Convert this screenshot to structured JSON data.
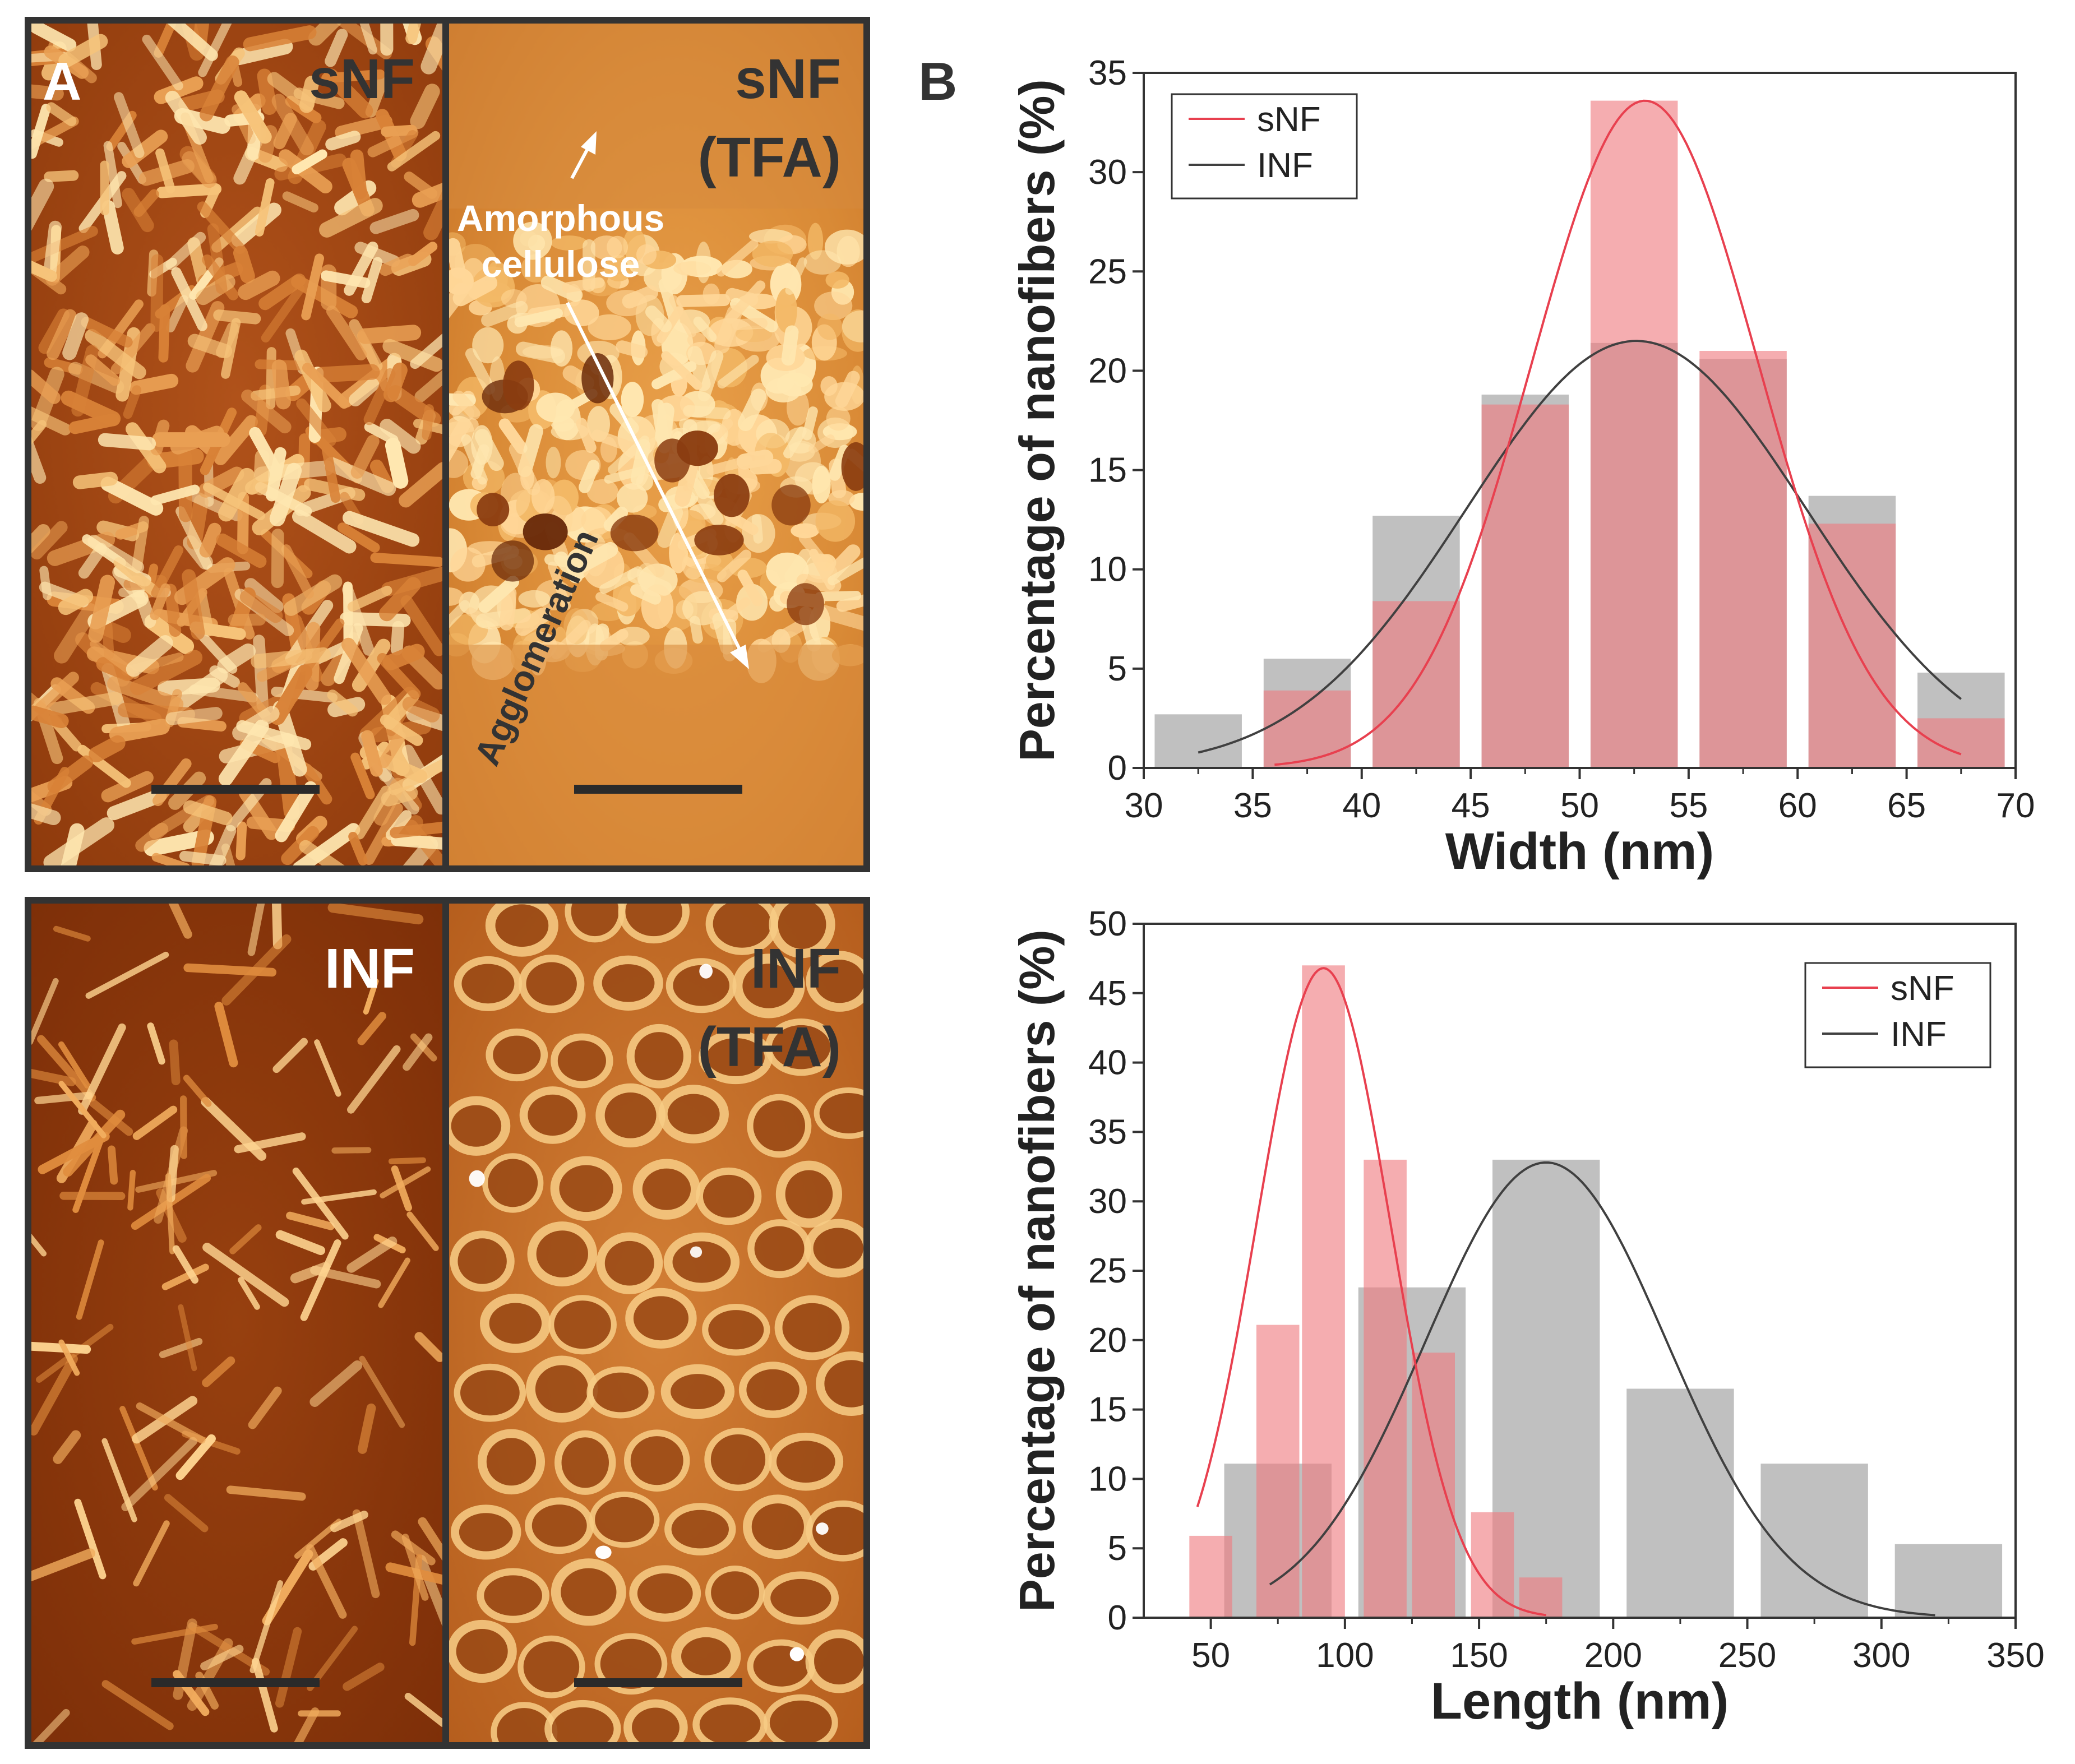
{
  "panel_a": {
    "label": "A",
    "images": [
      {
        "title": "sNF",
        "title2": "",
        "style": "rods"
      },
      {
        "title": "sNF",
        "title2": "(TFA)",
        "style": "amorphous"
      },
      {
        "title": "INF",
        "title2": "",
        "style": "sparse"
      },
      {
        "title": "INF",
        "title2": "(TFA)",
        "style": "network"
      }
    ],
    "annotations": {
      "amorphous_line1": "Amorphous",
      "amorphous_line2": "cellulose",
      "agglomeration": "Agglomeration"
    },
    "colors": {
      "afm_dark": "#7a2c08",
      "afm_mid": "#c0601e",
      "afm_light": "#ffe7b0",
      "frame": "#333333"
    }
  },
  "panel_b": {
    "label": "B"
  },
  "colors": {
    "snf": "#e8404f",
    "snf_bar": "#ef7b80",
    "inf": "#404040",
    "inf_bar": "#9a9a9a"
  },
  "chart_data": [
    {
      "type": "bar",
      "title": "",
      "xlabel": "Width (nm)",
      "ylabel": "Percentage of nanofibers (%)",
      "xlim": [
        30,
        70
      ],
      "ylim": [
        0,
        35
      ],
      "xticks": [
        30,
        35,
        40,
        45,
        50,
        55,
        60,
        65,
        70
      ],
      "yticks": [
        0,
        5,
        10,
        15,
        20,
        25,
        30,
        35
      ],
      "bin_width": 4,
      "legend_position": "top-left",
      "legend": [
        "sNF",
        "INF"
      ],
      "series": [
        {
          "name": "sNF",
          "bin_centers": [
            37.5,
            42.5,
            47.5,
            52.5,
            57.5,
            62.5,
            67.5
          ],
          "values": [
            3.9,
            8.4,
            18.3,
            33.6,
            21.0,
            12.3,
            2.5
          ],
          "fit": {
            "kind": "gaussian",
            "mean": 53.0,
            "sd": 5.2,
            "peak": 33.6,
            "from": 36,
            "to": 67.5
          }
        },
        {
          "name": "INF",
          "bin_centers": [
            32.5,
            37.5,
            42.5,
            47.5,
            52.5,
            57.5,
            62.5,
            67.5
          ],
          "values": [
            2.7,
            5.5,
            12.7,
            18.8,
            21.4,
            20.6,
            13.7,
            4.8
          ],
          "fit": {
            "kind": "gaussian",
            "mean": 52.6,
            "sd": 7.8,
            "peak": 21.5,
            "from": 32.5,
            "to": 67.5
          }
        }
      ]
    },
    {
      "type": "bar",
      "title": "",
      "xlabel": "Length (nm)",
      "ylabel": "Percentage of nanofibers (%)",
      "xlim": [
        25,
        350
      ],
      "ylim": [
        0,
        50
      ],
      "xticks": [
        50,
        100,
        150,
        200,
        250,
        300,
        350
      ],
      "yticks": [
        0,
        5,
        10,
        15,
        20,
        25,
        30,
        35,
        40,
        45,
        50
      ],
      "legend_position": "top-right",
      "legend": [
        "sNF",
        "INF"
      ],
      "series": [
        {
          "name": "sNF",
          "bin_width": 16,
          "bin_centers": [
            50,
            75,
            92,
            115,
            133,
            155,
            173
          ],
          "values": [
            5.9,
            21.1,
            47.0,
            33.0,
            19.1,
            7.6,
            2.9
          ],
          "fit": {
            "kind": "gaussian",
            "mean": 92,
            "sd": 25,
            "peak": 46.8,
            "from": 45,
            "to": 175
          }
        },
        {
          "name": "INF",
          "bin_width": 40,
          "bin_centers": [
            75,
            125,
            175,
            225,
            275,
            325
          ],
          "values": [
            11.1,
            23.8,
            33.0,
            16.5,
            11.1,
            5.3
          ],
          "fit": {
            "kind": "gaussian",
            "mean": 175,
            "sd": 45,
            "peak": 32.8,
            "from": 72,
            "to": 320
          }
        }
      ]
    }
  ]
}
